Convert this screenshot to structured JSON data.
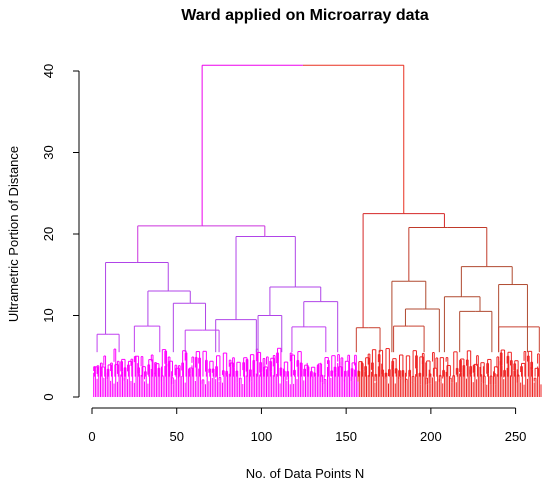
{
  "chart_data": {
    "type": "dendrogram",
    "title": "Ward applied on Microarray data",
    "xlabel": "No. of Data Points N",
    "ylabel": "Ultrametric Portion of Distance",
    "xlim": [
      0,
      265
    ],
    "ylim": [
      0,
      41
    ],
    "xticks": [
      0,
      50,
      100,
      150,
      200,
      250
    ],
    "yticks": [
      0,
      10,
      20,
      30,
      40
    ],
    "n_leaves": 265,
    "clusters": [
      {
        "name": "",
        "color": "#ff00ff",
        "leaf_range": [
          1,
          157
        ]
      },
      {
        "name": "",
        "color": "#ee2222",
        "leaf_range": [
          158,
          265
        ]
      }
    ],
    "merges": [
      {
        "height": 40.7,
        "left_x": 65,
        "right_x": 184,
        "left_color": "#ee00ee",
        "right_color": "#e83020"
      },
      {
        "height": 21.0,
        "left_x": 27,
        "right_x": 102,
        "color": "#cc33dd"
      },
      {
        "height": 22.5,
        "left_x": 160,
        "right_x": 208,
        "color": "#d42626"
      },
      {
        "height": 16.5,
        "left_x": 8,
        "right_x": 45,
        "color": "#b044e8"
      },
      {
        "height": 19.7,
        "left_x": 85,
        "right_x": 120,
        "color": "#b044e8"
      },
      {
        "height": 20.8,
        "left_x": 187,
        "right_x": 233,
        "color": "#c03a2a"
      },
      {
        "height": 13.0,
        "left_x": 33,
        "right_x": 58,
        "color": "#b044e8"
      },
      {
        "height": 13.5,
        "left_x": 105,
        "right_x": 135,
        "color": "#b044e8"
      },
      {
        "height": 14.2,
        "left_x": 177,
        "right_x": 197,
        "color": "#b04a30"
      },
      {
        "height": 16.0,
        "left_x": 218,
        "right_x": 248,
        "color": "#b04a30"
      },
      {
        "height": 12.3,
        "left_x": 208,
        "right_x": 229,
        "color": "#b04a30"
      },
      {
        "height": 13.8,
        "left_x": 240,
        "right_x": 257,
        "color": "#b04a30"
      },
      {
        "height": 11.5,
        "left_x": 48,
        "right_x": 67,
        "color": "#b044e8"
      },
      {
        "height": 9.5,
        "left_x": 73,
        "right_x": 97,
        "color": "#b044e8"
      },
      {
        "height": 10.0,
        "left_x": 98,
        "right_x": 112,
        "color": "#b044e8"
      },
      {
        "height": 11.7,
        "left_x": 125,
        "right_x": 145,
        "color": "#b044e8"
      },
      {
        "height": 10.8,
        "left_x": 185,
        "right_x": 205,
        "color": "#b04a30"
      },
      {
        "height": 10.5,
        "left_x": 217,
        "right_x": 236,
        "color": "#b04a30"
      },
      {
        "height": 7.7,
        "left_x": 3,
        "right_x": 16,
        "color": "#c040f0"
      },
      {
        "height": 8.7,
        "left_x": 25,
        "right_x": 40,
        "color": "#c040f0"
      },
      {
        "height": 8.2,
        "left_x": 55,
        "right_x": 75,
        "color": "#c040f0"
      },
      {
        "height": 8.6,
        "left_x": 118,
        "right_x": 138,
        "color": "#c040f0"
      },
      {
        "height": 8.5,
        "left_x": 156,
        "right_x": 170,
        "color": "#c84030"
      },
      {
        "height": 8.7,
        "left_x": 178,
        "right_x": 196,
        "color": "#c84030"
      },
      {
        "height": 8.6,
        "left_x": 240,
        "right_x": 264,
        "color": "#c84030"
      }
    ]
  }
}
